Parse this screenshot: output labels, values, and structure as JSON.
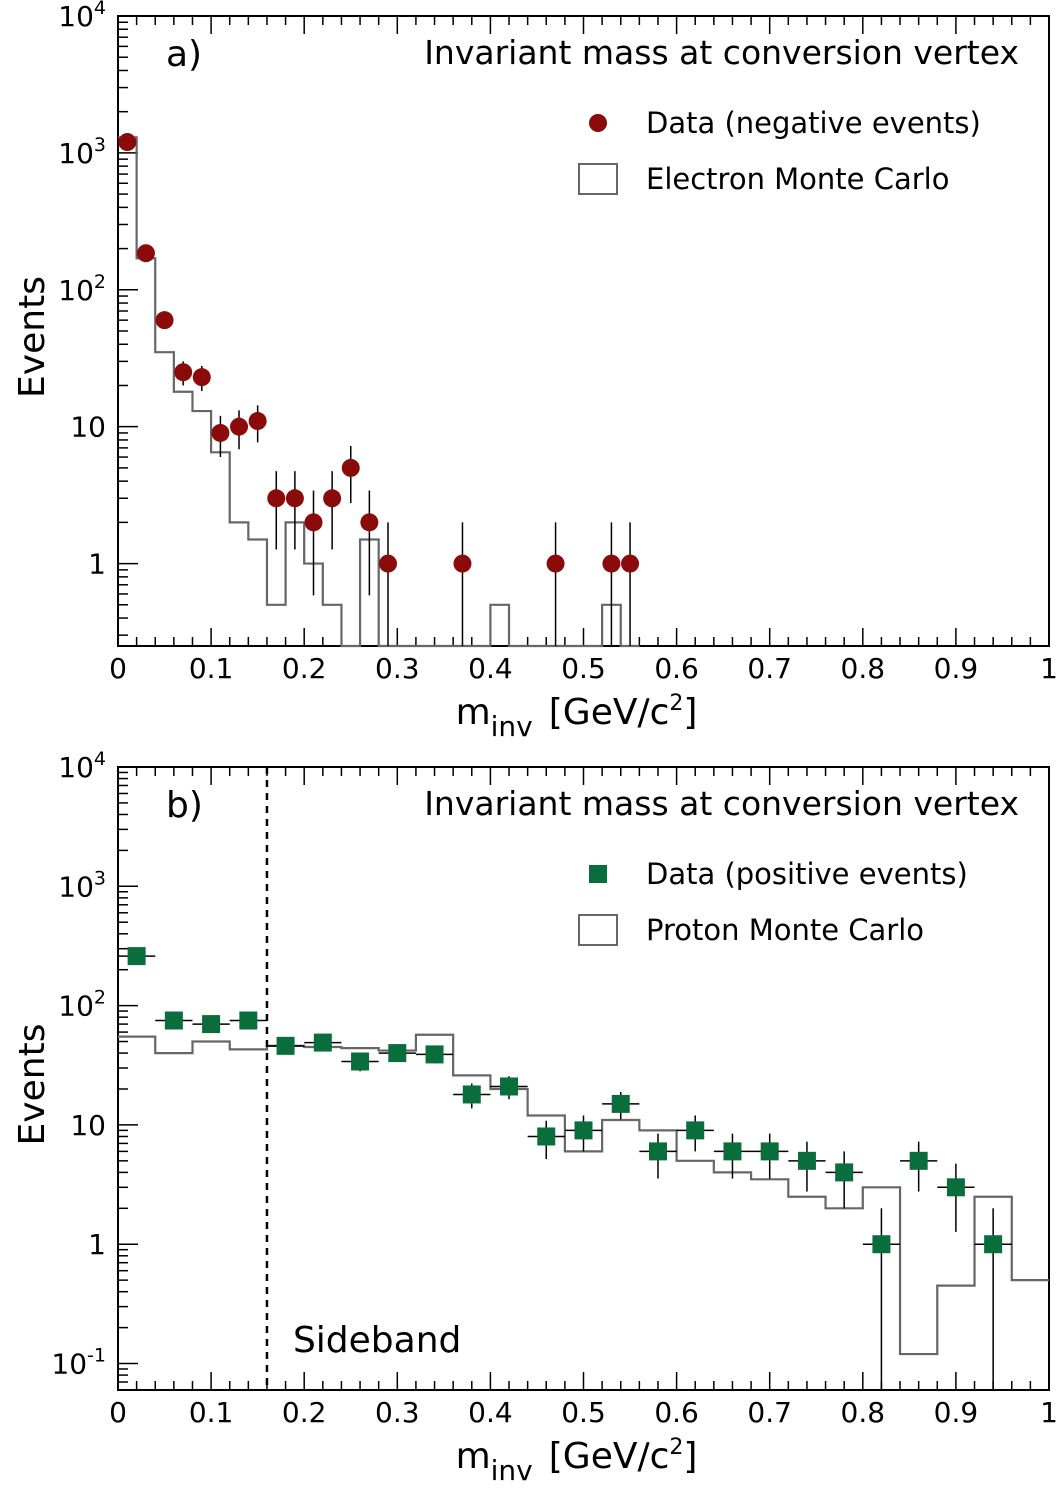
{
  "chart_data": [
    {
      "type": "scatter",
      "panel_label": "a)",
      "title": "Invariant mass at conversion vertex",
      "xlabel_main": "m",
      "xlabel_sub": "inv",
      "xlabel_unit": "[GeV/c",
      "xlabel_sup": "2",
      "xlabel_end": "]",
      "ylabel": "Events",
      "xlim": [
        0,
        1
      ],
      "ylim": [
        0.25,
        10000
      ],
      "y_scale": "log",
      "grid": false,
      "legend_position": "top-right",
      "x_ticks": [
        "0",
        "0.1",
        "0.2",
        "0.3",
        "0.4",
        "0.5",
        "0.6",
        "0.7",
        "0.8",
        "0.9",
        "1"
      ],
      "y_ticks": [
        {
          "value": 1,
          "base": "1",
          "sup": ""
        },
        {
          "value": 10,
          "base": "10",
          "sup": ""
        },
        {
          "value": 100,
          "base": "10",
          "sup": "2"
        },
        {
          "value": 1000,
          "base": "10",
          "sup": "3"
        },
        {
          "value": 10000,
          "base": "10",
          "sup": "4"
        }
      ],
      "series": [
        {
          "name": "Data (negative events)",
          "marker": "circle",
          "color": "#8b0a0a",
          "x": [
            0.01,
            0.03,
            0.05,
            0.07,
            0.09,
            0.11,
            0.13,
            0.15,
            0.17,
            0.19,
            0.21,
            0.23,
            0.25,
            0.27,
            0.29,
            0.37,
            0.47,
            0.53,
            0.55
          ],
          "y": [
            1200,
            185,
            60,
            25,
            23,
            9,
            10,
            11,
            3,
            3,
            2,
            3,
            5,
            2,
            1,
            1,
            1,
            1,
            1
          ]
        },
        {
          "name": "Electron Monte Carlo",
          "marker": "histogram",
          "color": "#666666",
          "bin_width": 0.02,
          "bin_start": 0.0,
          "values": [
            1300,
            170,
            35,
            18,
            13,
            6.5,
            2,
            1.5,
            0.5,
            2,
            1,
            0.5,
            0,
            1.5,
            0,
            0,
            0,
            0,
            0,
            0,
            0.5,
            0,
            0,
            0,
            0,
            0,
            0.5,
            0
          ]
        }
      ]
    },
    {
      "type": "scatter",
      "panel_label": "b)",
      "title": "Invariant mass at conversion vertex",
      "annotation": "Sideband",
      "sideband_x": 0.16,
      "xlabel_main": "m",
      "xlabel_sub": "inv",
      "xlabel_unit": "[GeV/c",
      "xlabel_sup": "2",
      "xlabel_end": "]",
      "ylabel": "Events",
      "xlim": [
        0,
        1
      ],
      "ylim": [
        0.06,
        10000
      ],
      "y_scale": "log",
      "grid": false,
      "legend_position": "top-right",
      "x_ticks": [
        "0",
        "0.1",
        "0.2",
        "0.3",
        "0.4",
        "0.5",
        "0.6",
        "0.7",
        "0.8",
        "0.9",
        "1"
      ],
      "y_ticks": [
        {
          "value": 0.1,
          "base": "10",
          "sup": "-1"
        },
        {
          "value": 1,
          "base": "1",
          "sup": ""
        },
        {
          "value": 10,
          "base": "10",
          "sup": ""
        },
        {
          "value": 100,
          "base": "10",
          "sup": "2"
        },
        {
          "value": 1000,
          "base": "10",
          "sup": "3"
        },
        {
          "value": 10000,
          "base": "10",
          "sup": "4"
        }
      ],
      "series": [
        {
          "name": "Data (positive events)",
          "marker": "square",
          "color": "#0a6e3c",
          "x": [
            0.02,
            0.06,
            0.1,
            0.14,
            0.18,
            0.22,
            0.26,
            0.3,
            0.34,
            0.38,
            0.42,
            0.46,
            0.5,
            0.54,
            0.58,
            0.62,
            0.66,
            0.7,
            0.74,
            0.78,
            0.82,
            0.86,
            0.9,
            0.94
          ],
          "y": [
            260,
            75,
            70,
            75,
            46,
            49,
            34,
            40,
            39,
            18,
            21,
            8,
            9,
            15,
            6,
            9,
            6,
            6,
            5,
            4,
            1,
            5,
            3,
            1
          ]
        },
        {
          "name": "Proton Monte Carlo",
          "marker": "histogram",
          "color": "#666666",
          "bin_width": 0.04,
          "bin_start": 0.0,
          "values": [
            55,
            40,
            50,
            43,
            46,
            45,
            44,
            42,
            57,
            26,
            20,
            12,
            6,
            11,
            9,
            5,
            4,
            3.5,
            2.5,
            2,
            3,
            0.12,
            0.45,
            2.5,
            0.5
          ]
        }
      ]
    }
  ]
}
